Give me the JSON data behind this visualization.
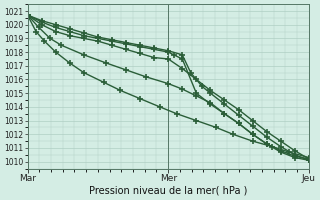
{
  "xlabel": "Pression niveau de la mer( hPa )",
  "xtick_labels": [
    "Mar",
    "Mer",
    "Jeu"
  ],
  "xtick_positions": [
    0,
    0.5,
    1.0
  ],
  "ylim": [
    1009.5,
    1021.5
  ],
  "yticks": [
    1010,
    1011,
    1012,
    1013,
    1014,
    1015,
    1016,
    1017,
    1018,
    1019,
    1020,
    1021
  ],
  "bg_color": "#d4ede4",
  "grid_color": "#b0cfc4",
  "line_color": "#2a5e38",
  "line_width": 1.0,
  "marker": "+",
  "marker_size": 4,
  "marker_edge_width": 1.2,
  "series": [
    {
      "x": [
        0.0,
        0.05,
        0.1,
        0.15,
        0.2,
        0.25,
        0.3,
        0.35,
        0.4,
        0.45,
        0.5,
        0.55,
        0.6,
        0.65,
        0.7,
        0.75,
        0.8,
        0.85,
        0.9,
        0.95,
        1.0
      ],
      "y": [
        1020.7,
        1020.0,
        1019.5,
        1019.2,
        1019.0,
        1018.8,
        1018.5,
        1018.2,
        1017.9,
        1017.6,
        1017.5,
        1016.8,
        1016.0,
        1015.2,
        1014.5,
        1013.8,
        1013.0,
        1012.2,
        1011.5,
        1010.8,
        1010.2
      ]
    },
    {
      "x": [
        0.0,
        0.05,
        0.1,
        0.15,
        0.2,
        0.25,
        0.3,
        0.35,
        0.4,
        0.45,
        0.5,
        0.52,
        0.55,
        0.6,
        0.65,
        0.7,
        0.75,
        0.8,
        0.85,
        0.9,
        0.95,
        1.0
      ],
      "y": [
        1020.7,
        1020.2,
        1019.8,
        1019.5,
        1019.2,
        1019.0,
        1018.8,
        1018.6,
        1018.4,
        1018.2,
        1018.0,
        1017.8,
        1017.5,
        1015.0,
        1014.2,
        1013.5,
        1012.8,
        1012.0,
        1011.3,
        1010.7,
        1010.3,
        1010.1
      ]
    },
    {
      "x": [
        0.0,
        0.05,
        0.1,
        0.15,
        0.2,
        0.25,
        0.3,
        0.35,
        0.4,
        0.45,
        0.5,
        0.55,
        0.58,
        0.62,
        0.65,
        0.7,
        0.75,
        0.8,
        0.85,
        0.9,
        0.95,
        1.0
      ],
      "y": [
        1020.7,
        1020.3,
        1020.0,
        1019.7,
        1019.4,
        1019.1,
        1018.9,
        1018.7,
        1018.5,
        1018.3,
        1018.1,
        1017.8,
        1016.5,
        1015.5,
        1015.0,
        1014.2,
        1013.4,
        1012.6,
        1011.8,
        1011.1,
        1010.5,
        1010.1
      ]
    },
    {
      "x": [
        0.0,
        0.04,
        0.08,
        0.12,
        0.2,
        0.28,
        0.35,
        0.42,
        0.5,
        0.55,
        0.6,
        0.65,
        0.7,
        0.75,
        0.8,
        0.85,
        0.9,
        0.95,
        1.0
      ],
      "y": [
        1020.7,
        1019.8,
        1019.0,
        1018.5,
        1017.8,
        1017.2,
        1016.7,
        1016.2,
        1015.7,
        1015.3,
        1014.8,
        1014.3,
        1013.5,
        1012.8,
        1012.0,
        1011.3,
        1010.8,
        1010.4,
        1010.2
      ]
    },
    {
      "x": [
        0.0,
        0.03,
        0.06,
        0.1,
        0.15,
        0.2,
        0.27,
        0.33,
        0.4,
        0.47,
        0.53,
        0.6,
        0.67,
        0.73,
        0.8,
        0.87,
        0.93,
        1.0
      ],
      "y": [
        1020.7,
        1019.5,
        1018.8,
        1018.0,
        1017.2,
        1016.5,
        1015.8,
        1015.2,
        1014.6,
        1014.0,
        1013.5,
        1013.0,
        1012.5,
        1012.0,
        1011.5,
        1011.1,
        1010.7,
        1010.3
      ]
    }
  ]
}
